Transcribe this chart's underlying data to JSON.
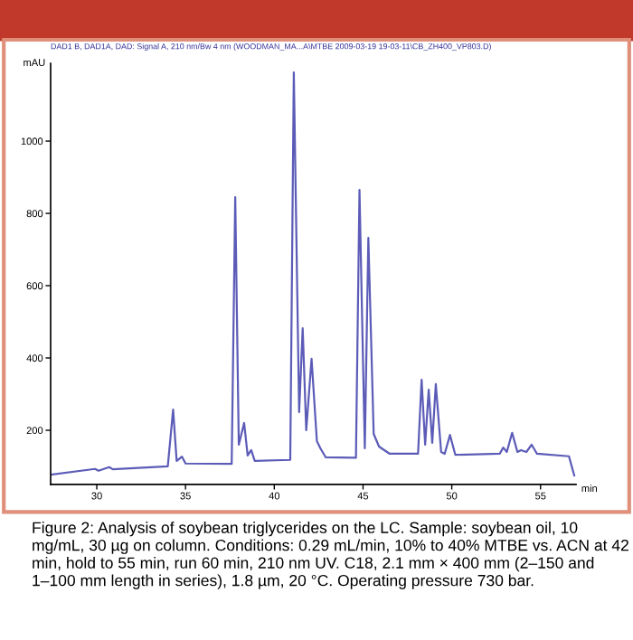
{
  "chart_data": {
    "type": "line",
    "subtitle": "DAD1 B, DAD1A, DAD: Signal A, 210 nm/Bw 4 nm (WOODMAN_MA...A\\MTBE 2009-03-19 19-03-11\\CB_ZH400_VP803.D)",
    "ylabel": "mAU",
    "xlabel": "min",
    "series": [
      {
        "color": "#5c5cb8",
        "x": [
          27.4,
          29.9,
          30.1,
          30.7,
          30.9,
          34.0,
          34.3,
          34.5,
          34.8,
          35.0,
          37.6,
          37.8,
          38.0,
          38.3,
          38.5,
          38.7,
          38.9,
          40.9,
          41.1,
          41.4,
          41.6,
          41.8,
          42.1,
          42.4,
          42.6,
          42.9,
          44.6,
          44.8,
          45.1,
          45.3,
          45.6,
          45.9,
          46.2,
          46.5,
          48.1,
          48.3,
          48.5,
          48.7,
          48.9,
          49.1,
          49.4,
          49.6,
          49.9,
          50.2,
          52.7,
          52.9,
          53.1,
          53.4,
          53.7,
          53.9,
          54.2,
          54.5,
          54.8,
          56.6,
          56.9
        ],
        "values": [
          77,
          93,
          88,
          98,
          92,
          100,
          257,
          115,
          127,
          108,
          107,
          845,
          160,
          220,
          130,
          145,
          115,
          118,
          1190,
          250,
          482,
          200,
          398,
          170,
          150,
          125,
          124,
          865,
          150,
          732,
          190,
          155,
          145,
          135,
          135,
          340,
          160,
          312,
          165,
          328,
          140,
          135,
          187,
          132,
          135,
          152,
          140,
          193,
          140,
          145,
          140,
          160,
          135,
          128,
          75
        ]
      }
    ],
    "xlim": [
      27.4,
      57.0
    ],
    "xticks": [
      30,
      35,
      40,
      45,
      50,
      55
    ],
    "ylim": [
      50,
      1215
    ],
    "yticks": [
      200,
      400,
      600,
      800,
      1000
    ],
    "grid": false,
    "legend": false,
    "marker": "none",
    "line_style": "solid",
    "annotations": [
      "Figure 2: Analysis of soybean triglycerides on the LC. Sample: soybean oil, 10 mg/mL, 30 µg on column. Conditions: 0.29 mL/min, 10% to 40% MTBE vs. ACN at 42 min, hold to 55 min, run 60 min, 210 nm UV. C18, 2.1 mm × 400 mm (2–150 and 1–100 mm length in series), 1.8 µm, 20 °C. Operating pressure 730 bar."
    ]
  }
}
